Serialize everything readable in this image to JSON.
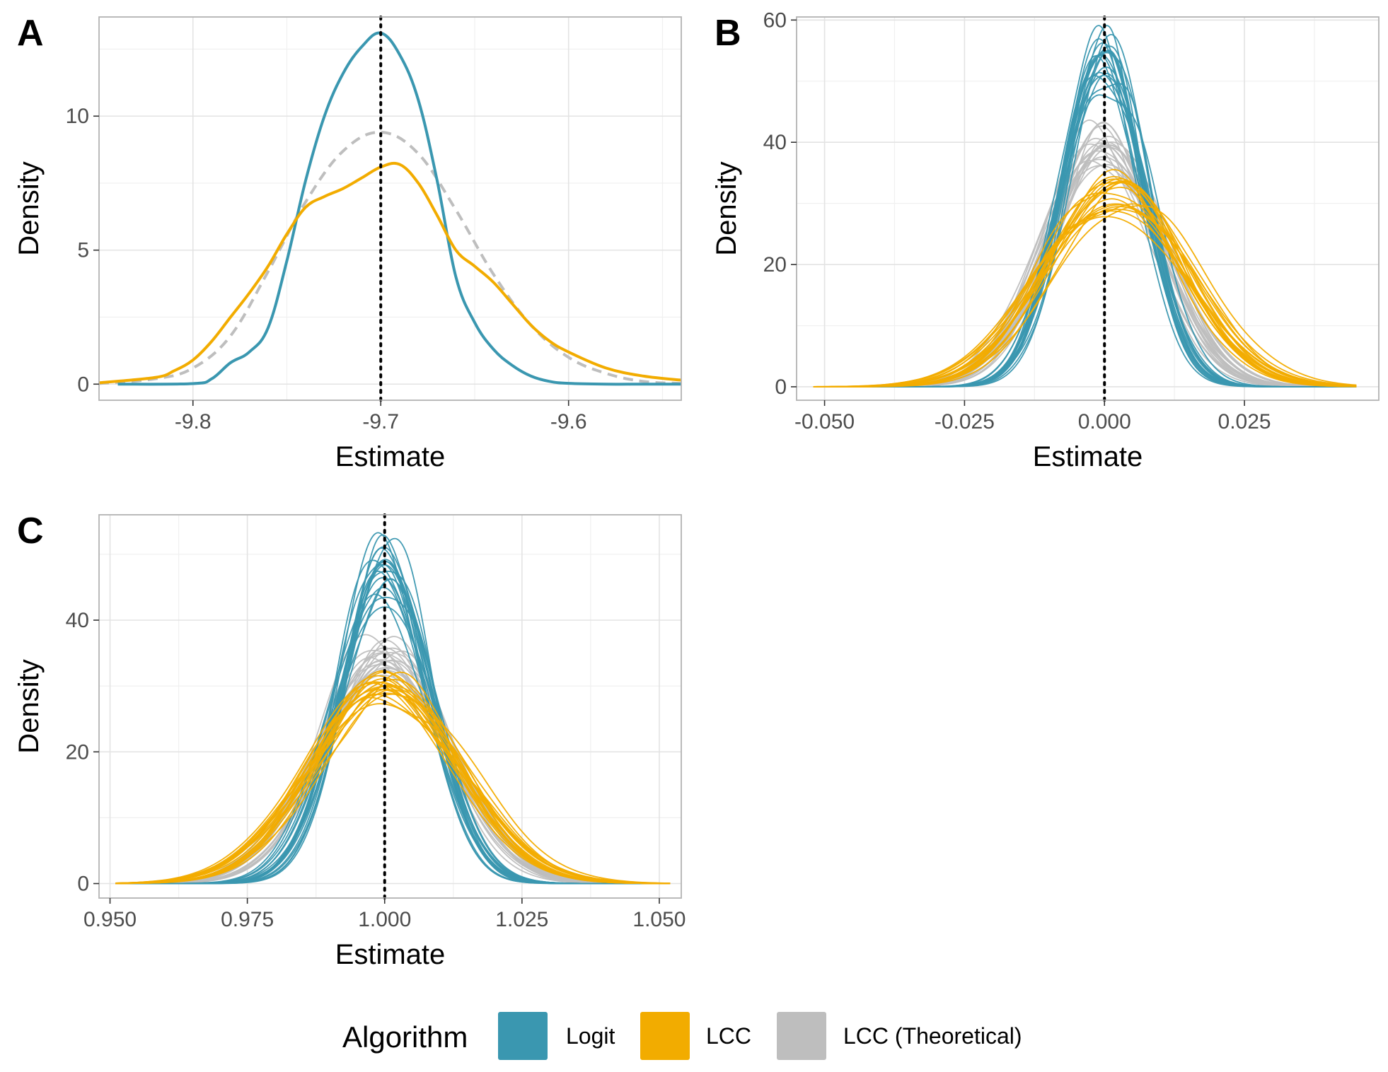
{
  "colors": {
    "logit": "#3A97B0",
    "lcc": "#F2AC00",
    "lcc_theoretical": "#BEBEBE",
    "reference_line": "#000000",
    "grid": "#E3E3E3",
    "panel_border": "#B3B3B3"
  },
  "legend": {
    "title": "Algorithm",
    "placement": "bottom",
    "items": [
      {
        "label": "Logit",
        "color": "#3A97B0"
      },
      {
        "label": "LCC",
        "color": "#F2AC00"
      },
      {
        "label": "LCC (Theoretical)",
        "color": "#BEBEBE"
      }
    ]
  },
  "chart_data": [
    {
      "tag": "A",
      "type": "line",
      "subtype": "density",
      "xlabel": "Estimate",
      "ylabel": "Density",
      "xlim": [
        -9.85,
        -9.54
      ],
      "ylim": [
        -0.6,
        13.7
      ],
      "xticks": [
        -9.8,
        -9.7,
        -9.6
      ],
      "xtick_labels": [
        "-9.8",
        "-9.7",
        "-9.6"
      ],
      "yticks": [
        0,
        5,
        10
      ],
      "ytick_labels": [
        "0",
        "5",
        "10"
      ],
      "reference_line_x": -9.7,
      "grid": true,
      "series": [
        {
          "name": "Logit",
          "style": "solid",
          "x": [
            -9.84,
            -9.8,
            -9.79,
            -9.78,
            -9.77,
            -9.76,
            -9.75,
            -9.74,
            -9.73,
            -9.72,
            -9.71,
            -9.7,
            -9.69,
            -9.68,
            -9.67,
            -9.66,
            -9.65,
            -9.64,
            -9.63,
            -9.62,
            -9.61,
            -9.6,
            -9.58,
            -9.56,
            -9.54
          ],
          "y": [
            0,
            0.02,
            0.2,
            0.8,
            1.2,
            2.1,
            4.6,
            7.6,
            10.0,
            11.6,
            12.6,
            13.1,
            12.3,
            10.6,
            7.6,
            4.0,
            2.3,
            1.3,
            0.7,
            0.3,
            0.1,
            0.03,
            0,
            0,
            0
          ]
        },
        {
          "name": "LCC",
          "style": "solid",
          "x": [
            -9.85,
            -9.82,
            -9.81,
            -9.8,
            -9.79,
            -9.78,
            -9.77,
            -9.76,
            -9.75,
            -9.74,
            -9.73,
            -9.72,
            -9.71,
            -9.7,
            -9.69,
            -9.68,
            -9.67,
            -9.66,
            -9.65,
            -9.64,
            -9.63,
            -9.62,
            -9.61,
            -9.6,
            -9.58,
            -9.56,
            -9.54
          ],
          "y": [
            0.05,
            0.25,
            0.5,
            0.9,
            1.6,
            2.5,
            3.4,
            4.4,
            5.6,
            6.6,
            7.0,
            7.3,
            7.7,
            8.1,
            8.2,
            7.5,
            6.3,
            5.0,
            4.4,
            3.8,
            3.0,
            2.2,
            1.6,
            1.2,
            0.6,
            0.3,
            0.15
          ]
        },
        {
          "name": "LCC (Theoretical)",
          "style": "dashed",
          "x": [
            -9.85,
            -9.82,
            -9.8,
            -9.78,
            -9.76,
            -9.74,
            -9.72,
            -9.7,
            -9.68,
            -9.66,
            -9.64,
            -9.62,
            -9.6,
            -9.58,
            -9.56,
            -9.54
          ],
          "y": [
            0.02,
            0.2,
            0.6,
            1.8,
            4.2,
            6.8,
            8.7,
            9.4,
            8.6,
            6.5,
            4.1,
            2.2,
            1.0,
            0.4,
            0.1,
            0.03
          ]
        }
      ]
    },
    {
      "tag": "B",
      "type": "line",
      "subtype": "density",
      "xlabel": "Estimate",
      "ylabel": "Density",
      "xlim": [
        -0.055,
        0.049
      ],
      "ylim": [
        -2.2,
        60.5
      ],
      "xticks": [
        -0.05,
        -0.025,
        0.0,
        0.025
      ],
      "xtick_labels": [
        "-0.050",
        "-0.025",
        "0.000",
        "0.025"
      ],
      "yticks": [
        0,
        20,
        40,
        60
      ],
      "ytick_labels": [
        "0",
        "20",
        "40",
        "60"
      ],
      "reference_line_x": 0.0,
      "grid": true,
      "replicates_per_series": 20,
      "series": [
        {
          "name": "Logit",
          "style": "solid",
          "approx_mean": 0.0,
          "approx_peak_density": 54,
          "range_of_peaks": [
            50,
            57
          ]
        },
        {
          "name": "LCC",
          "style": "solid",
          "approx_mean": 0.002,
          "approx_peak_density": 32,
          "range_of_peaks": [
            29,
            35
          ]
        },
        {
          "name": "LCC (Theoretical)",
          "style": "solid",
          "approx_mean": 0.0,
          "approx_peak_density": 39,
          "range_of_peaks": [
            36,
            42
          ]
        }
      ],
      "x_range_drawn": [
        -0.052,
        0.045
      ]
    },
    {
      "tag": "C",
      "type": "line",
      "subtype": "density",
      "xlabel": "Estimate",
      "ylabel": "Density",
      "xlim": [
        0.948,
        1.054
      ],
      "ylim": [
        -2.2,
        56.0
      ],
      "xticks": [
        0.95,
        0.975,
        1.0,
        1.025,
        1.05
      ],
      "xtick_labels": [
        "0.950",
        "0.975",
        "1.000",
        "1.025",
        "1.050"
      ],
      "yticks": [
        0,
        20,
        40
      ],
      "ytick_labels": [
        "0",
        "20",
        "40"
      ],
      "reference_line_x": 1.0,
      "grid": true,
      "replicates_per_series": 20,
      "series": [
        {
          "name": "Logit",
          "style": "solid",
          "approx_mean": 1.0,
          "approx_peak_density": 48,
          "range_of_peaks": [
            43,
            53
          ]
        },
        {
          "name": "LCC",
          "style": "solid",
          "approx_mean": 1.0,
          "approx_peak_density": 30,
          "range_of_peaks": [
            28,
            32
          ]
        },
        {
          "name": "LCC (Theoretical)",
          "style": "solid",
          "approx_mean": 1.0,
          "approx_peak_density": 34,
          "range_of_peaks": [
            32,
            37
          ]
        }
      ],
      "x_range_drawn": [
        0.951,
        1.052
      ]
    }
  ]
}
